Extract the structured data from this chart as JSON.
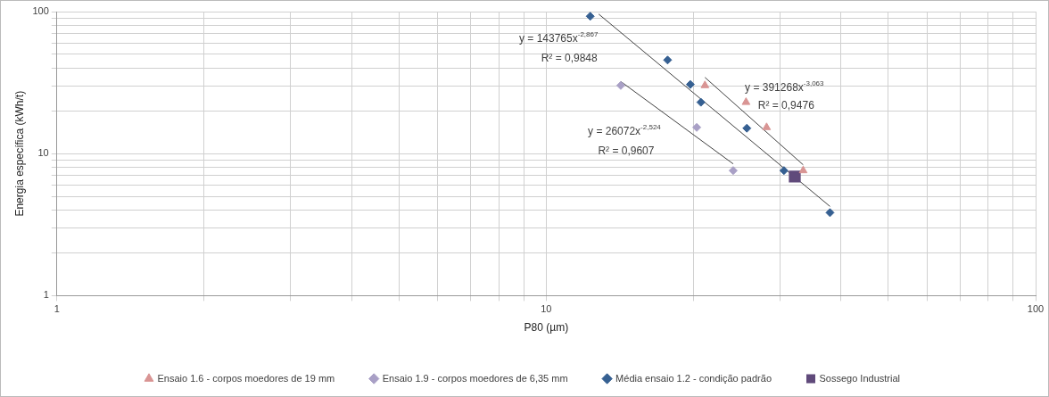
{
  "chart_data": {
    "type": "scatter",
    "xlabel": "P80 (µm)",
    "ylabel": "Energia específica (kWh/t)",
    "log": "xy",
    "grid": true,
    "legend": "bottom",
    "xlim": [
      1,
      100
    ],
    "ylim": [
      1,
      100
    ],
    "xticks": [
      1,
      {
        "value": 2,
        "label": null
      },
      {
        "value": 3,
        "label": null
      },
      {
        "value": 4,
        "label": null
      },
      {
        "value": 5,
        "label": null
      },
      {
        "value": 6,
        "label": null
      },
      {
        "value": 7,
        "label": null
      },
      {
        "value": 8,
        "label": null
      },
      {
        "value": 9,
        "label": null
      },
      10,
      {
        "value": 20,
        "label": null
      },
      {
        "value": 30,
        "label": null
      },
      {
        "value": 40,
        "label": null
      },
      {
        "value": 50,
        "label": null
      },
      {
        "value": 60,
        "label": null
      },
      {
        "value": 70,
        "label": null
      },
      {
        "value": 80,
        "label": null
      },
      {
        "value": 90,
        "label": null
      },
      100
    ],
    "yticks": [
      1,
      {
        "value": 2,
        "label": null
      },
      {
        "value": 3,
        "label": null
      },
      {
        "value": 4,
        "label": null
      },
      {
        "value": 5,
        "label": null
      },
      {
        "value": 6,
        "label": null
      },
      {
        "value": 7,
        "label": null
      },
      {
        "value": 8,
        "label": null
      },
      {
        "value": 9,
        "label": null
      },
      10,
      {
        "value": 20,
        "label": null
      },
      {
        "value": 30,
        "label": null
      },
      {
        "value": 40,
        "label": null
      },
      {
        "value": 50,
        "label": null
      },
      {
        "value": 60,
        "label": null
      },
      {
        "value": 70,
        "label": null
      },
      {
        "value": 80,
        "label": null
      },
      {
        "value": 90,
        "label": null
      },
      100
    ],
    "series": [
      {
        "name": "Ensaio 1.6 - corpos moedores de 19 mm",
        "type": "scatter",
        "marker": "triangle",
        "color": "#d99594",
        "x": [
          21.1,
          25.6,
          28.2,
          33.5
        ],
        "values": [
          30.2,
          23.0,
          15.3,
          7.6
        ]
      },
      {
        "name": "Ensaio 1.9 - corpos moedores de 6,35 mm",
        "type": "scatter",
        "marker": "diamond",
        "color": "#a9a0c6",
        "x": [
          14.2,
          20.3,
          24.1
        ],
        "values": [
          30.2,
          15.3,
          7.6
        ]
      },
      {
        "name": "Média ensaio 1.2 - condição padrão",
        "type": "scatter",
        "marker": "diamond",
        "color": "#366092",
        "x": [
          12.3,
          17.7,
          19.7,
          20.7,
          25.7,
          30.6,
          38.0
        ],
        "values": [
          92.7,
          45.6,
          30.7,
          23.0,
          15.1,
          7.6,
          3.84
        ]
      },
      {
        "name": "Sossego Industrial",
        "type": "line",
        "marker": "square",
        "color": "#604a7b",
        "x": [
          32.2
        ],
        "values": [
          6.9
        ]
      },
      {
        "type": "line",
        "marker": "none",
        "color": "#404040",
        "x": [
          12.8,
          38.0
        ],
        "values": [
          96,
          4.25
        ]
      },
      {
        "type": "line",
        "marker": "none",
        "color": "#404040",
        "x": [
          21.1,
          33.5
        ],
        "values": [
          34.4,
          8.34
        ]
      },
      {
        "type": "line",
        "marker": "none",
        "color": "#404040",
        "x": [
          14.2,
          24.1
        ],
        "values": [
          32.2,
          8.47
        ]
      }
    ],
    "annotations": [
      "y = 143765x$^{-2,867}$",
      "R² = 0,9848",
      "y = 391268x$^{-3,063}$",
      "R² = 0,9476",
      "y = 26072x$^{-2,524}$",
      "R² = 0,9607"
    ]
  }
}
